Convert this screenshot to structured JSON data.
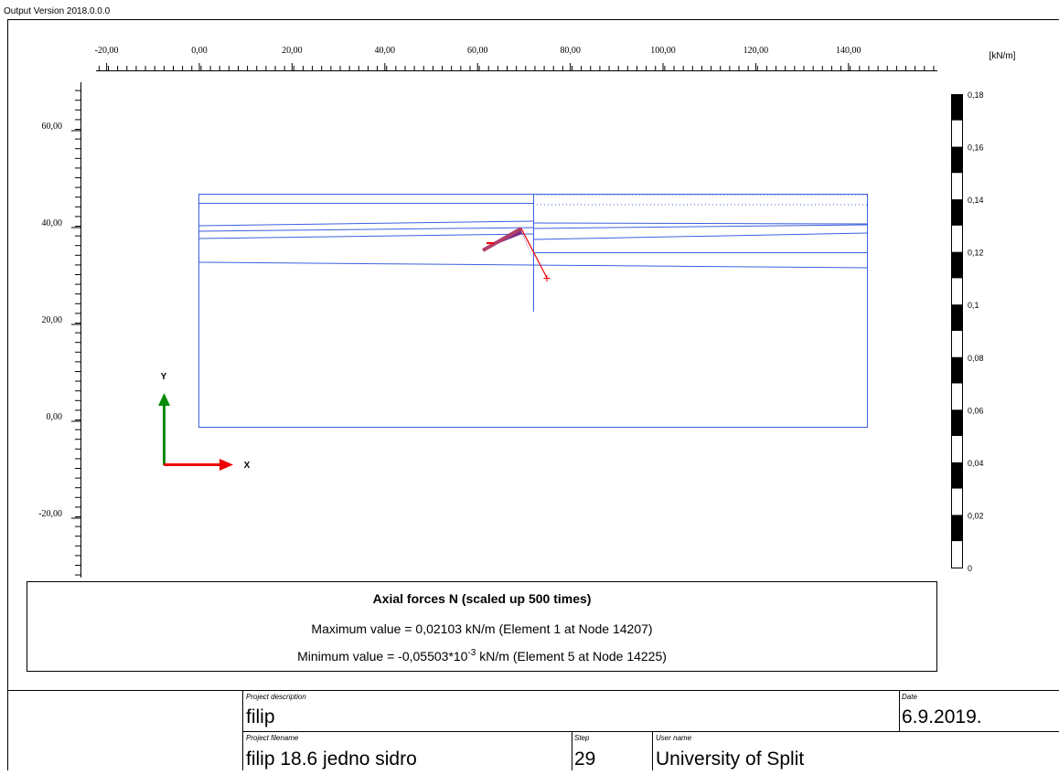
{
  "header": {
    "version": "Output Version 2018.0.0.0"
  },
  "ruler": {
    "x_ticks": [
      {
        "value": -20,
        "label": "-20,00"
      },
      {
        "value": 0,
        "label": "0,00"
      },
      {
        "value": 20,
        "label": "20,00"
      },
      {
        "value": 40,
        "label": "40,00"
      },
      {
        "value": 60,
        "label": "60,00"
      },
      {
        "value": 80,
        "label": "80,00"
      },
      {
        "value": 100,
        "label": "100,00"
      },
      {
        "value": 120,
        "label": "120,00"
      },
      {
        "value": 140,
        "label": "140,00"
      }
    ],
    "y_ticks": [
      {
        "value": 60,
        "label": "60,00"
      },
      {
        "value": 40,
        "label": "40,00"
      },
      {
        "value": 20,
        "label": "20,00"
      },
      {
        "value": 0,
        "label": "0,00"
      },
      {
        "value": -20,
        "label": "-20,00"
      }
    ]
  },
  "axes": {
    "x": "X",
    "y": "Y"
  },
  "legend": {
    "unit": "[kN/m]",
    "ticks": [
      {
        "value": 0.18,
        "label": "0,18"
      },
      {
        "value": 0.16,
        "label": "0,16"
      },
      {
        "value": 0.14,
        "label": "0,14"
      },
      {
        "value": 0.12,
        "label": "0,12"
      },
      {
        "value": 0.1,
        "label": "0,1"
      },
      {
        "value": 0.08,
        "label": "0,08"
      },
      {
        "value": 0.06,
        "label": "0,06"
      },
      {
        "value": 0.04,
        "label": "0,04"
      },
      {
        "value": 0.02,
        "label": "0,02"
      },
      0
    ]
  },
  "info": {
    "title": "Axial forces N (scaled up 500 times)",
    "maximum": "Maximum value = 0,02103 kN/m (Element 1 at Node 14207)",
    "minimum_start": "Minimum value = -0,05503*10",
    "minimum_exponent": "-3",
    "minimum_end": " kN/m (Element 5 at Node 14225)"
  },
  "title_block": {
    "project_description_label": "Project description",
    "project_description": "filip",
    "date_label": "Date",
    "date": "6.9.2019.",
    "project_filename_label": "Project filename",
    "project_filename": "filip 18.6 jedno sidro",
    "step_label": "Step",
    "step": "29",
    "user_name_label": "User name",
    "user_name": "University of Split"
  }
}
